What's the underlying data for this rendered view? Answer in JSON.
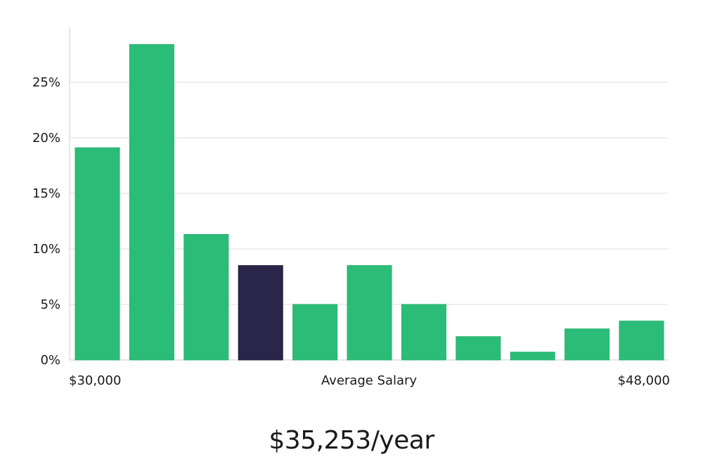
{
  "chart_data": {
    "type": "bar",
    "title": "",
    "xlabel": "Average Salary",
    "ylabel": "",
    "x_range_labels": {
      "min": "$30,000",
      "max": "$48,000"
    },
    "y_ticks": [
      "0%",
      "5%",
      "10%",
      "15%",
      "20%",
      "25%"
    ],
    "y_tick_values": [
      0,
      5,
      10,
      15,
      20,
      25
    ],
    "ylim": [
      0,
      30
    ],
    "values": [
      19.1,
      28.4,
      11.3,
      8.5,
      5.0,
      8.5,
      5.0,
      2.1,
      0.7,
      2.8,
      3.5
    ],
    "highlight_index": 3,
    "grid": true,
    "colors": {
      "bar": "#2bbd77",
      "highlight": "#29264a",
      "grid": "#dddddd",
      "axis": "#cccccc"
    }
  },
  "salary_summary": "$35,253/year"
}
